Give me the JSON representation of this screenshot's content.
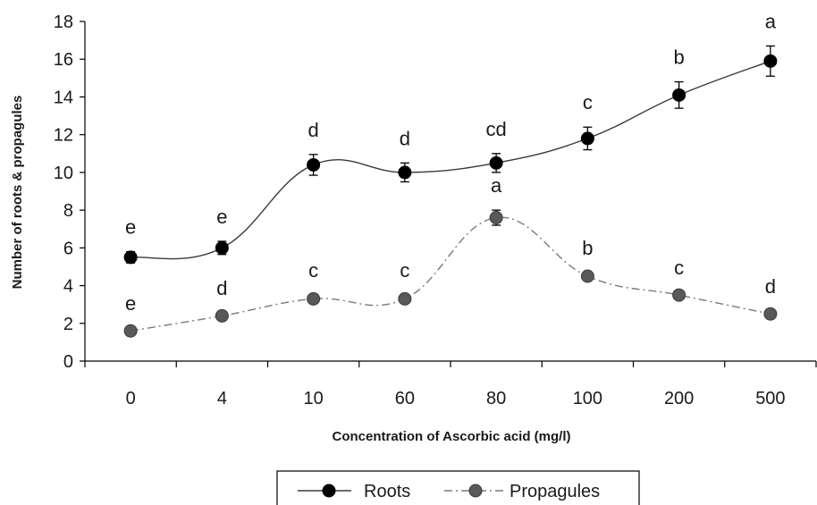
{
  "chart_data": {
    "type": "line",
    "categories": [
      "0",
      "4",
      "10",
      "60",
      "80",
      "100",
      "200",
      "500"
    ],
    "series": [
      {
        "name": "Roots",
        "values": [
          5.5,
          6.0,
          10.4,
          10.0,
          10.5,
          11.8,
          14.1,
          15.9
        ],
        "errors": [
          0.3,
          0.35,
          0.55,
          0.5,
          0.5,
          0.6,
          0.7,
          0.8
        ],
        "labels": [
          "e",
          "e",
          "d",
          "d",
          "cd",
          "c",
          "b",
          "a"
        ],
        "color": "#000000",
        "line_style": "solid"
      },
      {
        "name": "Propagules",
        "values": [
          1.6,
          2.4,
          3.3,
          3.3,
          7.6,
          4.5,
          3.5,
          2.5
        ],
        "errors": [
          0.15,
          0.15,
          0.2,
          0.2,
          0.4,
          0.2,
          0.15,
          0.15
        ],
        "labels": [
          "e",
          "d",
          "c",
          "c",
          "a",
          "b",
          "c",
          "d"
        ],
        "color": "#595959",
        "line_style": "dash-dot"
      }
    ],
    "xlabel": "Concentration of Ascorbic acid (mg/l)",
    "ylabel": "Number of roots & propagules",
    "ylim": [
      0,
      18
    ],
    "yticks": [
      "0",
      "2",
      "4",
      "6",
      "8",
      "10",
      "12",
      "14",
      "16",
      "18"
    ],
    "grid": false,
    "legend": "bottom-center"
  }
}
